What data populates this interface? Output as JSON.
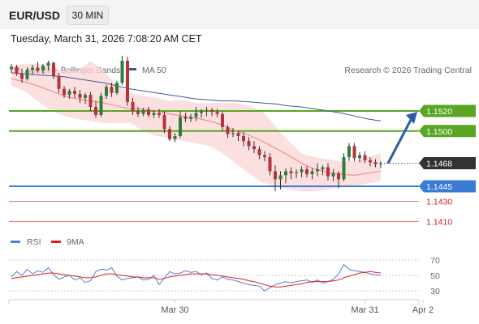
{
  "header": {
    "pair": "EUR/USD",
    "timeframe": "30 MIN",
    "timestamp": "Tuesday, March 31, 2026 7:08:20 AM CET"
  },
  "legend": {
    "ma20_label": "MA 20 + Bollinger Bands",
    "ma50_label": "MA 50",
    "copyright": "Research © 2026 Trading Central",
    "rsi_label": "RSI",
    "ma9_label": "9MA"
  },
  "colors": {
    "ma20": "#f08080",
    "ma50": "#3b5b92",
    "bollinger_fill": "#fbd5d5",
    "resistance": "#5aa524",
    "current": "#333333",
    "support": "#3a7bd5",
    "target": "#cc2222",
    "candle_up": "#2f7d3a",
    "candle_down": "#b8323c",
    "arrow": "#2c5ea8",
    "rsi": "#4f7fd6",
    "rsi_ma": "#e02020"
  },
  "levels": [
    {
      "value": 1.152,
      "label": "1.1520",
      "kind": "resistance"
    },
    {
      "value": 1.15,
      "label": "1.1500",
      "kind": "resistance"
    },
    {
      "value": 1.1468,
      "label": "1.1468",
      "kind": "current"
    },
    {
      "value": 1.1445,
      "label": "1.1445",
      "kind": "support"
    },
    {
      "value": 1.143,
      "label": "1.1430",
      "kind": "target"
    },
    {
      "value": 1.141,
      "label": "1.1410",
      "kind": "target"
    }
  ],
  "chart_data": [
    {
      "type": "candlestick",
      "symbol": "EUR/USD",
      "interval": "30 MIN",
      "ylim": [
        1.14,
        1.162
      ],
      "xticks": [
        {
          "label": "Mar 30",
          "index": 31
        },
        {
          "label": "Mar 31",
          "index": 67
        },
        {
          "label": "Apr 2",
          "index": 78
        }
      ],
      "candles": [
        [
          1.1562,
          1.1567,
          1.1558,
          1.1564
        ],
        [
          1.1564,
          1.1566,
          1.1555,
          1.1557
        ],
        [
          1.1557,
          1.1562,
          1.1548,
          1.1552
        ],
        [
          1.1552,
          1.1563,
          1.155,
          1.1561
        ],
        [
          1.1561,
          1.1566,
          1.1556,
          1.1563
        ],
        [
          1.1563,
          1.1569,
          1.1558,
          1.156
        ],
        [
          1.156,
          1.1567,
          1.1557,
          1.1565
        ],
        [
          1.1565,
          1.157,
          1.156,
          1.1568
        ],
        [
          1.1568,
          1.1569,
          1.1552,
          1.1555
        ],
        [
          1.1555,
          1.1558,
          1.1538,
          1.1542
        ],
        [
          1.1542,
          1.1545,
          1.1533,
          1.1536
        ],
        [
          1.1536,
          1.1542,
          1.1532,
          1.154
        ],
        [
          1.154,
          1.1544,
          1.1533,
          1.1537
        ],
        [
          1.1537,
          1.1541,
          1.1528,
          1.1533
        ],
        [
          1.1533,
          1.1538,
          1.1527,
          1.1536
        ],
        [
          1.1536,
          1.1539,
          1.152,
          1.1524
        ],
        [
          1.1524,
          1.153,
          1.1513,
          1.1516
        ],
        [
          1.1516,
          1.1538,
          1.1514,
          1.1535
        ],
        [
          1.1535,
          1.1546,
          1.1532,
          1.1544
        ],
        [
          1.1544,
          1.1548,
          1.1534,
          1.1538
        ],
        [
          1.1538,
          1.155,
          1.1536,
          1.1548
        ],
        [
          1.1548,
          1.1575,
          1.1546,
          1.157
        ],
        [
          1.157,
          1.1574,
          1.1525,
          1.1529
        ],
        [
          1.1529,
          1.1533,
          1.1516,
          1.152
        ],
        [
          1.152,
          1.1524,
          1.1514,
          1.1517
        ],
        [
          1.1517,
          1.1523,
          1.1515,
          1.1521
        ],
        [
          1.1521,
          1.1524,
          1.1514,
          1.1516
        ],
        [
          1.1516,
          1.1521,
          1.1513,
          1.1518
        ],
        [
          1.1518,
          1.1522,
          1.1513,
          1.1516
        ],
        [
          1.1516,
          1.152,
          1.1498,
          1.1502
        ],
        [
          1.1502,
          1.1505,
          1.149,
          1.1492
        ],
        [
          1.1492,
          1.1498,
          1.1489,
          1.1495
        ],
        [
          1.1495,
          1.152,
          1.1493,
          1.1514
        ],
        [
          1.1514,
          1.1518,
          1.1509,
          1.1512
        ],
        [
          1.1512,
          1.1517,
          1.1509,
          1.1514
        ],
        [
          1.1514,
          1.1524,
          1.151,
          1.1518
        ],
        [
          1.1518,
          1.1522,
          1.1513,
          1.152
        ],
        [
          1.152,
          1.1524,
          1.1515,
          1.1521
        ],
        [
          1.1521,
          1.1523,
          1.1515,
          1.1519
        ],
        [
          1.1519,
          1.1522,
          1.1514,
          1.1517
        ],
        [
          1.1517,
          1.1519,
          1.15,
          1.1504
        ],
        [
          1.1504,
          1.1506,
          1.1493,
          1.1497
        ],
        [
          1.1497,
          1.1503,
          1.1494,
          1.1498
        ],
        [
          1.1498,
          1.15,
          1.149,
          1.1495
        ],
        [
          1.1495,
          1.1499,
          1.1485,
          1.149
        ],
        [
          1.149,
          1.1494,
          1.1481,
          1.1485
        ],
        [
          1.1485,
          1.149,
          1.1478,
          1.1482
        ],
        [
          1.1482,
          1.1485,
          1.1472,
          1.1476
        ],
        [
          1.1476,
          1.148,
          1.147,
          1.1474
        ],
        [
          1.1474,
          1.1478,
          1.1456,
          1.146
        ],
        [
          1.146,
          1.1466,
          1.144,
          1.1452
        ],
        [
          1.1452,
          1.146,
          1.1442,
          1.1456
        ],
        [
          1.1456,
          1.1463,
          1.1448,
          1.146
        ],
        [
          1.146,
          1.1464,
          1.1452,
          1.1458
        ],
        [
          1.1458,
          1.1462,
          1.1453,
          1.1459
        ],
        [
          1.1459,
          1.1465,
          1.1454,
          1.1462
        ],
        [
          1.1462,
          1.1465,
          1.1454,
          1.1457
        ],
        [
          1.1457,
          1.1463,
          1.1452,
          1.146
        ],
        [
          1.146,
          1.1468,
          1.1455,
          1.1462
        ],
        [
          1.1462,
          1.1466,
          1.1456,
          1.1464
        ],
        [
          1.1464,
          1.1468,
          1.1451,
          1.1455
        ],
        [
          1.1455,
          1.1462,
          1.145,
          1.1458
        ],
        [
          1.1458,
          1.146,
          1.1443,
          1.1452
        ],
        [
          1.1452,
          1.1478,
          1.145,
          1.1474
        ],
        [
          1.1474,
          1.1488,
          1.147,
          1.1485
        ],
        [
          1.1485,
          1.1488,
          1.147,
          1.1473
        ],
        [
          1.1473,
          1.1479,
          1.1469,
          1.1476
        ],
        [
          1.1476,
          1.148,
          1.1468,
          1.1471
        ],
        [
          1.1471,
          1.1474,
          1.1465,
          1.1469
        ],
        [
          1.1469,
          1.1472,
          1.1464,
          1.1467
        ],
        [
          1.1467,
          1.147,
          1.1463,
          1.1468
        ]
      ],
      "ma50": [
        1.1558,
        1.1557,
        1.1556,
        1.1555,
        1.1554,
        1.1552,
        1.155,
        1.1548,
        1.1545,
        1.1542,
        1.154,
        1.1538,
        1.1536,
        1.1534,
        1.1532,
        1.1531,
        1.153,
        1.153,
        1.1529,
        1.1528,
        1.1527,
        1.1525,
        1.1524,
        1.1522,
        1.152,
        1.1518,
        1.1515,
        1.1512,
        1.151
      ],
      "ma20": [
        1.1552,
        1.1549,
        1.1545,
        1.154,
        1.1535,
        1.1532,
        1.153,
        1.1528,
        1.1525,
        1.1522,
        1.1522,
        1.152,
        1.1517,
        1.1515,
        1.1513,
        1.151,
        1.1506,
        1.15,
        1.1496,
        1.149,
        1.1483,
        1.1476,
        1.1468,
        1.1462,
        1.1459,
        1.1457,
        1.1456,
        1.1458,
        1.146
      ],
      "bb_upper": [
        1.1565,
        1.1567,
        1.1567,
        1.1565,
        1.156,
        1.156,
        1.157,
        1.156,
        1.1545,
        1.1538,
        1.1535,
        1.1533,
        1.153,
        1.1531,
        1.1528,
        1.1528,
        1.1528,
        1.1528,
        1.1525,
        1.152,
        1.1505,
        1.149,
        1.1478,
        1.1474,
        1.1472,
        1.147,
        1.147,
        1.1474,
        1.1478
      ],
      "bb_lower": [
        1.1545,
        1.154,
        1.153,
        1.152,
        1.1515,
        1.1512,
        1.151,
        1.1508,
        1.1508,
        1.1508,
        1.15,
        1.1495,
        1.1493,
        1.149,
        1.1488,
        1.1485,
        1.1478,
        1.1468,
        1.1458,
        1.1449,
        1.1445,
        1.1442,
        1.144,
        1.144,
        1.1442,
        1.1444,
        1.1445,
        1.1448,
        1.145
      ],
      "projection": {
        "from": 1.1468,
        "to": 1.152
      }
    },
    {
      "type": "line",
      "name": "RSI",
      "ylim": [
        20,
        80
      ],
      "yticks": [
        70,
        50,
        30
      ],
      "series": [
        {
          "name": "RSI",
          "values": [
            48,
            55,
            50,
            58,
            52,
            56,
            54,
            60,
            51,
            45,
            48,
            50,
            44,
            47,
            41,
            43,
            55,
            58,
            57,
            60,
            49,
            44,
            46,
            47,
            48,
            44,
            45,
            50,
            38,
            47,
            55,
            52,
            53,
            56,
            54,
            55,
            51,
            53,
            46,
            44,
            48,
            45,
            44,
            42,
            40,
            38,
            37,
            36,
            30,
            34,
            38,
            40,
            42,
            40,
            42,
            43,
            44,
            41,
            44,
            40,
            42,
            45,
            52,
            64,
            58,
            56,
            55,
            54,
            52,
            51,
            50
          ]
        },
        {
          "name": "9MA",
          "values": [
            46,
            47,
            48,
            49,
            50,
            51,
            52,
            53,
            53,
            52,
            51,
            50,
            49,
            48,
            47,
            47,
            48,
            50,
            52,
            52,
            51,
            50,
            49,
            48,
            48,
            47,
            47,
            47,
            45,
            46,
            48,
            49,
            50,
            51,
            52,
            52,
            52,
            52,
            51,
            50,
            49,
            48,
            47,
            46,
            45,
            43,
            42,
            40,
            38,
            36,
            35,
            35,
            36,
            37,
            38,
            39,
            41,
            42,
            42,
            42,
            42,
            43,
            44,
            47,
            49,
            51,
            53,
            54,
            55,
            54,
            53
          ]
        }
      ]
    }
  ]
}
